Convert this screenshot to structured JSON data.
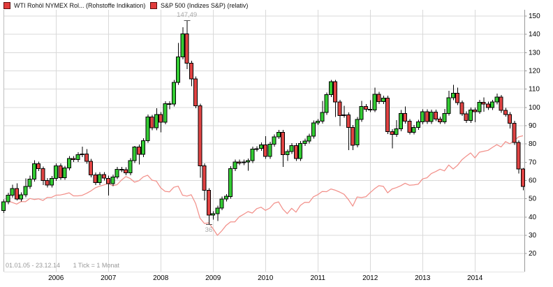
{
  "legend": [
    {
      "label": "WTI Rohöl NYMEX Rol... (Rohstoffe Indikation)",
      "swatch_fill": "#e13c3c",
      "swatch_border": "#5a0d0d"
    },
    {
      "label": "S&P 500 (Indizes S&P) (relativ)",
      "swatch_fill": "#e13c3c",
      "swatch_border": "#5a0d0d"
    }
  ],
  "footer": {
    "range": "01.01.05 - 23.12.14",
    "tick": "1 Tick = 1 Monat"
  },
  "axis": {
    "y_ticks": [
      150,
      140,
      130,
      120,
      110,
      100,
      90,
      80,
      70,
      60,
      50,
      40,
      30,
      20
    ],
    "y_range": [
      20,
      150
    ],
    "years": [
      2006,
      2007,
      2008,
      2009,
      2010,
      2011,
      2012,
      2013,
      2014
    ]
  },
  "annotations": [
    {
      "text": "147,49",
      "value": 147.49,
      "month_index": 42,
      "position": "above"
    },
    {
      "text": "36",
      "value": 36,
      "month_index": 47,
      "position": "below"
    }
  ],
  "colors": {
    "up": "#33cc33",
    "down": "#e04343",
    "candle_border": "#000000",
    "wick": "#000000",
    "sp_line": "#f2908a",
    "grid": "#d9d9d9",
    "frame": "#bfbfbf",
    "bottom_edge": "#e3e3e3",
    "axis_line": "#999999",
    "axis_text": "#000000",
    "annotation_text": "#a8a8a8",
    "annotation_tick": "#555555",
    "info_text": "#999999",
    "background": "#ffffff"
  },
  "chart_data": {
    "type": "candlestick+line",
    "title": "WTI Rohöl NYMEX vs. S&P 500 (relativ)",
    "x_start": "01.01.05",
    "x_end": "23.12.14",
    "tick_interval": "1 Monat",
    "months_start_year": 2005,
    "series_names": [
      "WTI Rohöl NYMEX Rol... (Rohstoffe Indikation)",
      "S&P 500 (Indizes S&P) (relativ)"
    ],
    "legend_position": "top",
    "grid": true,
    "high_label": "147,49",
    "low_label": "36",
    "candles": {
      "open": [
        43.45,
        48.2,
        51.75,
        55.4,
        49.72,
        51.97,
        56.5,
        60.57,
        68.94,
        66.24,
        59.76,
        57.32,
        61.04,
        67.92,
        61.41,
        66.63,
        71.88,
        71.29,
        73.93,
        74.4,
        70.26,
        62.91,
        58.73,
        63.13,
        61.05,
        58.14,
        61.79,
        65.87,
        65.71,
        64.01,
        70.68,
        78.21,
        74.04,
        81.66,
        94.53,
        88.71,
        95.98,
        91.75,
        101.84,
        101.58,
        113.46,
        127.35,
        140.0,
        124.08,
        115.46,
        100.64,
        67.81,
        54.43,
        41.0,
        41.68,
        44.76,
        49.66,
        51.12,
        66.31,
        69.89,
        69.45,
        69.96,
        70.61,
        77.0,
        77.28,
        79.36,
        72.89,
        79.66,
        83.76,
        86.15,
        73.97,
        75.63,
        78.95,
        71.92,
        79.97,
        81.43,
        84.11,
        91.38,
        92.19,
        96.97,
        106.72,
        113.93,
        102.7,
        95.42,
        95.7,
        88.81,
        79.2,
        93.19,
        100.36,
        98.83,
        98.48,
        107.07,
        103.02,
        104.87,
        86.53,
        84.96,
        88.06,
        96.47,
        92.19,
        86.24,
        88.91,
        91.82,
        97.49,
        92.05,
        97.23,
        93.46,
        91.97,
        96.56,
        105.03,
        107.65,
        102.33,
        96.38,
        92.72,
        98.42,
        97.49,
        102.59,
        101.58,
        99.74,
        102.71,
        105.37,
        98.17,
        95.96,
        91.16,
        80.54,
        66.15
      ],
      "high": [
        49.5,
        53.1,
        57.6,
        58.3,
        53.3,
        60.9,
        62.5,
        70.9,
        70.2,
        67.5,
        61.1,
        62.3,
        69.2,
        69.2,
        67.9,
        73.2,
        73.2,
        75.2,
        78.4,
        77.0,
        71.6,
        64.2,
        64.4,
        64.4,
        62.4,
        63.1,
        67.2,
        67.2,
        67.0,
        72.0,
        78.8,
        79.5,
        83.0,
        96.0,
        95.8,
        99.3,
        97.3,
        103.1,
        103.1,
        114.8,
        135.1,
        143.7,
        147.49,
        125.4,
        116.8,
        101.9,
        69.1,
        55.7,
        43.0,
        46.1,
        51.0,
        52.4,
        67.6,
        71.2,
        71.2,
        71.3,
        71.9,
        78.3,
        78.6,
        80.7,
        84.0,
        81.0,
        85.1,
        87.5,
        87.5,
        76.9,
        80.3,
        80.3,
        81.3,
        82.7,
        85.4,
        92.7,
        93.5,
        103.4,
        108.0,
        114.8,
        114.9,
        104.0,
        100.6,
        97.0,
        90.1,
        94.6,
        103.4,
        101.7,
        103.7,
        110.6,
        108.4,
        106.2,
        106.2,
        87.8,
        92.9,
        98.3,
        100.4,
        93.5,
        90.2,
        93.1,
        98.8,
        98.8,
        98.5,
        98.5,
        94.8,
        99.0,
        108.9,
        112.2,
        110.7,
        103.6,
        97.7,
        99.7,
        99.7,
        103.9,
        105.2,
        102.9,
        104.0,
        107.3,
        106.7,
        99.5,
        97.3,
        92.5,
        81.8,
        66.6
      ],
      "low": [
        42.0,
        46.9,
        50.5,
        48.9,
        48.4,
        50.7,
        55.2,
        59.3,
        64.9,
        57.3,
        56.0,
        56.0,
        59.7,
        60.1,
        60.1,
        65.3,
        70.0,
        70.0,
        72.6,
        69.0,
        61.6,
        57.4,
        57.4,
        59.8,
        51.6,
        56.8,
        60.5,
        64.4,
        62.7,
        62.7,
        69.4,
        68.6,
        72.7,
        80.4,
        87.4,
        87.4,
        86.1,
        90.5,
        98.7,
        100.3,
        112.2,
        126.1,
        120.8,
        111.3,
        99.3,
        61.3,
        49.0,
        36.0,
        38.5,
        37.6,
        43.5,
        48.4,
        49.8,
        65.0,
        68.2,
        68.2,
        65.1,
        69.3,
        75.7,
        76.0,
        71.6,
        71.6,
        78.4,
        82.5,
        67.2,
        70.5,
        74.3,
        70.6,
        70.6,
        78.7,
        80.1,
        82.8,
        90.1,
        90.9,
        95.7,
        105.4,
        94.6,
        89.6,
        94.1,
        76.5,
        76.5,
        77.9,
        91.9,
        97.5,
        97.2,
        97.2,
        101.7,
        101.7,
        85.2,
        77.3,
        83.7,
        86.8,
        90.9,
        85.0,
        85.0,
        87.6,
        90.5,
        90.8,
        90.8,
        92.2,
        90.7,
        90.7,
        95.3,
        103.7,
        101.0,
        95.1,
        91.4,
        91.4,
        91.7,
        96.2,
        97.4,
        98.4,
        98.4,
        101.4,
        96.9,
        94.7,
        88.2,
        79.2,
        63.7,
        54.4
      ],
      "close": [
        48.2,
        51.75,
        55.4,
        49.72,
        51.97,
        56.5,
        60.57,
        68.94,
        66.24,
        59.76,
        57.32,
        61.04,
        67.92,
        61.41,
        66.63,
        71.88,
        71.29,
        73.93,
        74.4,
        70.26,
        62.91,
        58.73,
        63.13,
        61.05,
        58.14,
        61.79,
        65.87,
        65.71,
        64.01,
        70.68,
        78.21,
        74.04,
        81.66,
        94.53,
        88.71,
        95.98,
        91.75,
        101.84,
        101.58,
        113.46,
        127.35,
        140.0,
        124.08,
        115.46,
        100.64,
        67.81,
        54.43,
        41.0,
        41.68,
        44.76,
        49.66,
        51.12,
        66.31,
        69.89,
        69.45,
        69.96,
        70.61,
        77.0,
        77.28,
        79.36,
        72.89,
        79.66,
        83.76,
        86.15,
        73.97,
        75.63,
        78.95,
        71.92,
        79.97,
        81.43,
        84.11,
        91.38,
        92.19,
        96.97,
        106.72,
        113.93,
        102.7,
        95.42,
        95.7,
        88.81,
        79.2,
        93.19,
        100.36,
        98.83,
        98.48,
        107.07,
        103.02,
        104.87,
        86.53,
        84.96,
        88.06,
        96.47,
        92.19,
        86.24,
        88.91,
        91.82,
        97.49,
        92.05,
        97.23,
        93.46,
        91.97,
        96.56,
        105.03,
        107.65,
        102.33,
        96.38,
        92.72,
        98.42,
        97.49,
        102.59,
        101.58,
        99.74,
        102.71,
        105.37,
        98.17,
        95.96,
        91.16,
        80.54,
        66.15,
        56.5
      ]
    },
    "sp500_relative": [
      47.8,
      48.7,
      47.8,
      46.9,
      48.3,
      48.2,
      50.0,
      49.4,
      49.8,
      48.9,
      50.6,
      50.6,
      51.8,
      51.9,
      52.4,
      53.1,
      51.4,
      51.4,
      51.7,
      52.8,
      54.1,
      55.8,
      56.7,
      57.4,
      58.2,
      57.0,
      57.5,
      60.0,
      62.0,
      60.9,
      58.9,
      59.7,
      61.8,
      62.7,
      60.0,
      59.5,
      55.8,
      53.9,
      53.6,
      56.1,
      56.7,
      51.8,
      51.3,
      52.0,
      47.2,
      39.2,
      36.3,
      36.6,
      33.4,
      29.8,
      32.3,
      35.3,
      37.2,
      37.2,
      40.0,
      41.3,
      42.8,
      42.0,
      44.4,
      45.2,
      43.5,
      44.7,
      47.4,
      48.1,
      44.1,
      41.7,
      44.6,
      42.5,
      46.2,
      47.9,
      47.8,
      50.9,
      52.1,
      53.8,
      53.7,
      55.2,
      54.5,
      53.5,
      52.3,
      49.4,
      45.8,
      50.8,
      50.5,
      50.9,
      53.2,
      55.3,
      57.0,
      56.6,
      53.1,
      55.2,
      55.9,
      57.0,
      58.3,
      57.2,
      57.4,
      57.8,
      60.7,
      61.3,
      63.6,
      64.7,
      66.0,
      65.1,
      68.3,
      66.1,
      68.1,
      71.1,
      73.1,
      74.9,
      72.2,
      75.3,
      75.8,
      76.3,
      77.9,
      79.4,
      78.2,
      81.1,
      79.9,
      81.7,
      83.7,
      84.3
    ]
  }
}
